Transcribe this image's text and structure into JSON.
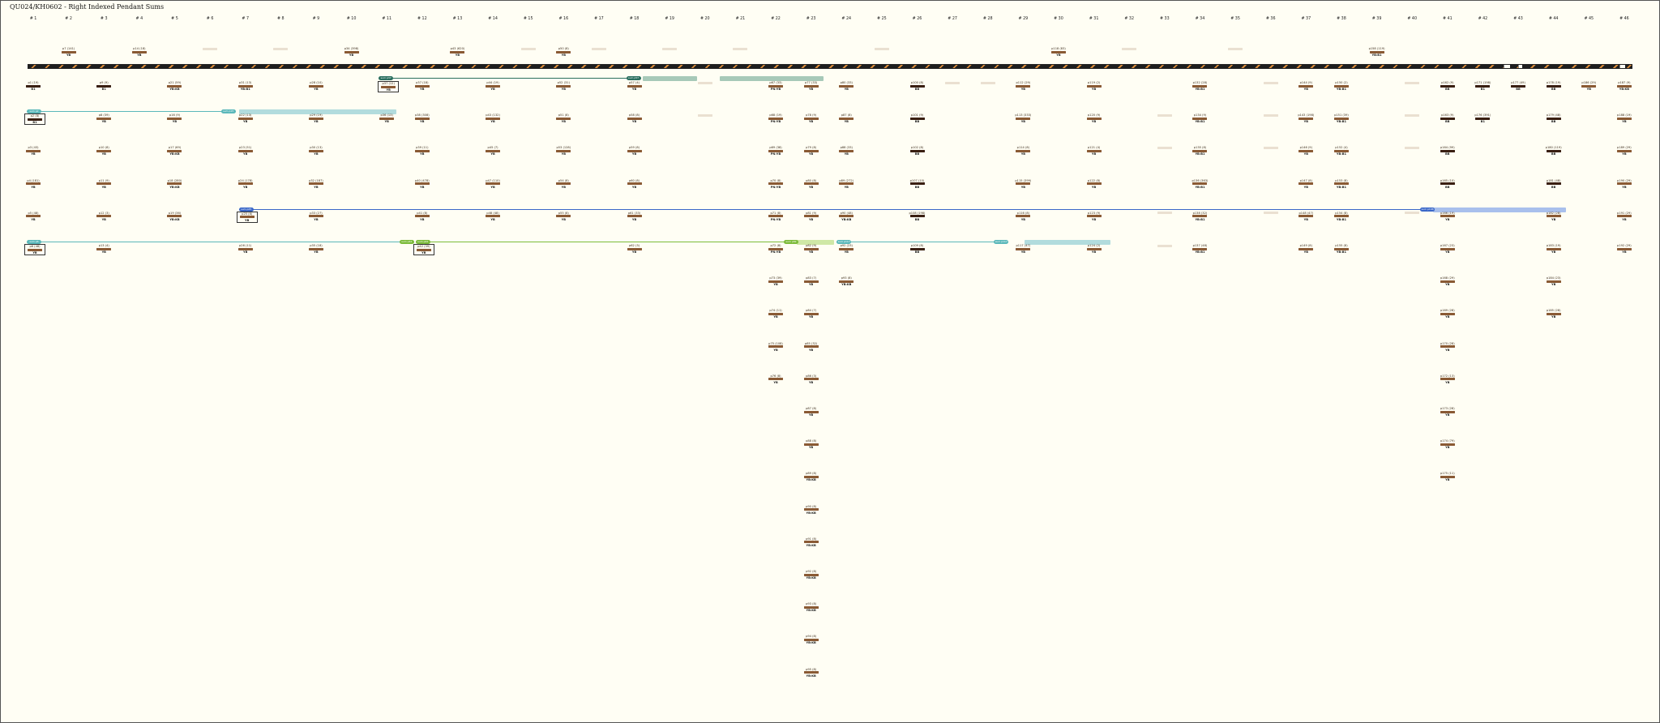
{
  "title": "QU024/KH0602 - Right Indexed Pendant Sums",
  "colors": {
    "background": "#fffef4",
    "cord_brown": "#8a5a34",
    "cord_dark": "#3a1f12",
    "strip_dark": "#1e1e1e",
    "strip_orange": "#d98b3a",
    "teal": "#5bb8ba",
    "dark_teal": "#2b6f5f",
    "blue": "#3a67c8",
    "light_blue": "#a9c0ec",
    "green": "#7cbb3a",
    "light_green": "#cfe8a6"
  },
  "columns": [
    "# 1",
    "# 2",
    "# 3",
    "# 4",
    "# 5",
    "# 6",
    "# 7",
    "# 8",
    "# 9",
    "# 10",
    "# 11",
    "# 12",
    "# 13",
    "# 14",
    "# 15",
    "# 16",
    "# 17",
    "# 18",
    "# 19",
    "# 20",
    "# 21",
    "# 22",
    "# 23",
    "# 24",
    "# 25",
    "# 26",
    "# 27",
    "# 28",
    "# 29",
    "# 30",
    "# 31",
    "# 32",
    "# 33",
    "# 34",
    "# 35",
    "# 36",
    "# 37",
    "# 38",
    "# 39",
    "# 40",
    "# 41",
    "# 42",
    "# 43",
    "# 44",
    "# 45",
    "# 46"
  ],
  "top_row": [
    {
      "c": 2,
      "label": "p7 (141)",
      "sub": "YB"
    },
    {
      "c": 4,
      "label": "p14 (18)",
      "sub": "YB"
    },
    {
      "c": 6,
      "label": "",
      "sub": "",
      "faded": true
    },
    {
      "c": 8,
      "label": "",
      "sub": "",
      "faded": true
    },
    {
      "c": 10,
      "label": "p34 (398)",
      "sub": "YB"
    },
    {
      "c": 13,
      "label": "p43 (620)",
      "sub": "YB"
    },
    {
      "c": 15,
      "label": "",
      "sub": "",
      "faded": true
    },
    {
      "c": 16,
      "label": "p50 (8)",
      "sub": "YB"
    },
    {
      "c": 17,
      "label": "",
      "sub": "",
      "faded": true
    },
    {
      "c": 19,
      "label": "",
      "sub": "",
      "faded": true
    },
    {
      "c": 21,
      "label": "",
      "sub": "",
      "faded": true
    },
    {
      "c": 25,
      "label": "",
      "sub": "",
      "faded": true
    },
    {
      "c": 30,
      "label": "p118 (83)",
      "sub": "YB"
    },
    {
      "c": 32,
      "label": "",
      "sub": "",
      "faded": true
    },
    {
      "c": 35,
      "label": "",
      "sub": "",
      "faded": true
    },
    {
      "c": 39,
      "label": "p158 (119)",
      "sub": "YB:B1"
    }
  ],
  "rows": [
    [
      {
        "c": 1,
        "label": "p1 (19)",
        "sub": "B1",
        "dark": true
      },
      {
        "c": 3,
        "label": "p9 (9)",
        "sub": "B1",
        "dark": true
      },
      {
        "c": 5,
        "label": "p21 (59)",
        "sub": "YB:KB"
      },
      {
        "c": 7,
        "label": "p31 (13)",
        "sub": "YB:B1"
      },
      {
        "c": 9,
        "label": "p28 (10)",
        "sub": "YB"
      },
      {
        "c": 11,
        "label": "p37 (12)",
        "sub": "YB",
        "boxed": true
      },
      {
        "c": 12,
        "label": "p37 (18)",
        "sub": "YB"
      },
      {
        "c": 14,
        "label": "p44 (19)",
        "sub": "YB"
      },
      {
        "c": 16,
        "label": "p52 (31)",
        "sub": "YB"
      },
      {
        "c": 18,
        "label": "p57 (4)",
        "sub": "YB"
      },
      {
        "c": 20,
        "label": "",
        "sub": "",
        "faded": true
      },
      {
        "c": 22,
        "label": "p67 (33)",
        "sub": "PN:YB"
      },
      {
        "c": 23,
        "label": "p77 (33)",
        "sub": "YB"
      },
      {
        "c": 24,
        "label": "p80 (33)",
        "sub": "YB"
      },
      {
        "c": 26,
        "label": "p100 (8)",
        "sub": "BB",
        "dark": true
      },
      {
        "c": 27,
        "label": "",
        "sub": "",
        "faded": true
      },
      {
        "c": 28,
        "label": "",
        "sub": "",
        "faded": true
      },
      {
        "c": 29,
        "label": "p112 (29)",
        "sub": "YB"
      },
      {
        "c": 31,
        "label": "p119 (2)",
        "sub": "YB"
      },
      {
        "c": 34,
        "label": "p132 (28)",
        "sub": "YB:B1"
      },
      {
        "c": 36,
        "label": "",
        "sub": "",
        "faded": true
      },
      {
        "c": 37,
        "label": "p144 (9)",
        "sub": "YB"
      },
      {
        "c": 38,
        "label": "p150 (2)",
        "sub": "YB:B1"
      },
      {
        "c": 40,
        "label": "",
        "sub": "",
        "faded": true
      },
      {
        "c": 41,
        "label": "p162 (9)",
        "sub": "BB",
        "dark": true
      },
      {
        "c": 42,
        "label": "p171 (198)",
        "sub": "B1",
        "dark": true
      },
      {
        "c": 43,
        "label": "p177 (49)",
        "sub": "BB",
        "dark": true
      },
      {
        "c": 44,
        "label": "p178 (19)",
        "sub": "BB",
        "dark": true
      },
      {
        "c": 45,
        "label": "p186 (29)",
        "sub": "YB"
      },
      {
        "c": 46,
        "label": "p187 (9)",
        "sub": "YB:KB"
      }
    ],
    [
      {
        "c": 1,
        "label": "p2 (8)",
        "sub": "B1",
        "dark": true,
        "boxed": true
      },
      {
        "c": 3,
        "label": "p8 (39)",
        "sub": "YB"
      },
      {
        "c": 5,
        "label": "p16 (9)",
        "sub": "YB"
      },
      {
        "c": 7,
        "label": "p22 (13)",
        "sub": "YB"
      },
      {
        "c": 9,
        "label": "p29 (19)",
        "sub": "YB"
      },
      {
        "c": 11,
        "label": "p36 (13)",
        "sub": "YB"
      },
      {
        "c": 12,
        "label": "p38 (308)",
        "sub": "YB"
      },
      {
        "c": 14,
        "label": "p43 (132)",
        "sub": "YB"
      },
      {
        "c": 16,
        "label": "p51 (8)",
        "sub": "YB"
      },
      {
        "c": 18,
        "label": "p58 (8)",
        "sub": "YB"
      },
      {
        "c": 20,
        "label": "",
        "sub": "",
        "faded": true
      },
      {
        "c": 22,
        "label": "p68 (19)",
        "sub": "PN:YB"
      },
      {
        "c": 23,
        "label": "p78 (9)",
        "sub": "YB"
      },
      {
        "c": 24,
        "label": "p87 (8)",
        "sub": "YB"
      },
      {
        "c": 26,
        "label": "p101 (9)",
        "sub": "BB",
        "dark": true
      },
      {
        "c": 29,
        "label": "p113 (333)",
        "sub": "YB"
      },
      {
        "c": 31,
        "label": "p120 (9)",
        "sub": "YB"
      },
      {
        "c": 33,
        "label": "",
        "sub": "",
        "faded": true
      },
      {
        "c": 34,
        "label": "p134 (9)",
        "sub": "YB:B1"
      },
      {
        "c": 36,
        "label": "",
        "sub": "",
        "faded": true
      },
      {
        "c": 37,
        "label": "p143 (198)",
        "sub": "YB"
      },
      {
        "c": 38,
        "label": "p151 (39)",
        "sub": "YB:B1"
      },
      {
        "c": 40,
        "label": "",
        "sub": "",
        "faded": true
      },
      {
        "c": 41,
        "label": "p163 (9)",
        "sub": "BB",
        "dark": true
      },
      {
        "c": 42,
        "label": "p176 (391)",
        "sub": "B1",
        "dark": true
      },
      {
        "c": 44,
        "label": "p179 (48)",
        "sub": "BB",
        "dark": true
      },
      {
        "c": 46,
        "label": "p188 (19)",
        "sub": "YB"
      }
    ],
    [
      {
        "c": 1,
        "label": "p3 (43)",
        "sub": "YB"
      },
      {
        "c": 3,
        "label": "p10 (8)",
        "sub": "YB"
      },
      {
        "c": 5,
        "label": "p17 (69)",
        "sub": "YB:KB"
      },
      {
        "c": 7,
        "label": "p23 (51)",
        "sub": "YB"
      },
      {
        "c": 9,
        "label": "p30 (13)",
        "sub": "YB"
      },
      {
        "c": 12,
        "label": "p39 (11)",
        "sub": "YB"
      },
      {
        "c": 14,
        "label": "p45 (7)",
        "sub": "YB"
      },
      {
        "c": 16,
        "label": "p53 (128)",
        "sub": "YB"
      },
      {
        "c": 18,
        "label": "p59 (8)",
        "sub": "YB"
      },
      {
        "c": 22,
        "label": "p69 (38)",
        "sub": "PN:YB"
      },
      {
        "c": 23,
        "label": "p79 (8)",
        "sub": "YB"
      },
      {
        "c": 24,
        "label": "p88 (33)",
        "sub": "YB"
      },
      {
        "c": 26,
        "label": "p102 (8)",
        "sub": "BB",
        "dark": true
      },
      {
        "c": 29,
        "label": "p114 (8)",
        "sub": "YB"
      },
      {
        "c": 31,
        "label": "p121 (4)",
        "sub": "YB"
      },
      {
        "c": 33,
        "label": "",
        "sub": "",
        "faded": true
      },
      {
        "c": 34,
        "label": "p135 (8)",
        "sub": "YB:B1"
      },
      {
        "c": 36,
        "label": "",
        "sub": "",
        "faded": true
      },
      {
        "c": 37,
        "label": "p146 (9)",
        "sub": "YB"
      },
      {
        "c": 38,
        "label": "p152 (4)",
        "sub": "YB:B1"
      },
      {
        "c": 40,
        "label": "",
        "sub": "",
        "faded": true
      },
      {
        "c": 41,
        "label": "p164 (99)",
        "sub": "BB",
        "dark": true
      },
      {
        "c": 44,
        "label": "p180 (119)",
        "sub": "BB",
        "dark": true
      },
      {
        "c": 46,
        "label": "p189 (29)",
        "sub": "YB"
      }
    ],
    [
      {
        "c": 1,
        "label": "p4 (181)",
        "sub": "YB"
      },
      {
        "c": 3,
        "label": "p11 (9)",
        "sub": "YB"
      },
      {
        "c": 5,
        "label": "p18 (280)",
        "sub": "YB:KB"
      },
      {
        "c": 7,
        "label": "p24 (178)",
        "sub": "YB"
      },
      {
        "c": 9,
        "label": "p32 (187)",
        "sub": "YB"
      },
      {
        "c": 12,
        "label": "p40 (478)",
        "sub": "YB"
      },
      {
        "c": 14,
        "label": "p47 (110)",
        "sub": "YB"
      },
      {
        "c": 16,
        "label": "p54 (8)",
        "sub": "YB"
      },
      {
        "c": 18,
        "label": "p60 (8)",
        "sub": "YB"
      },
      {
        "c": 22,
        "label": "p70 (8)",
        "sub": "PN:YB"
      },
      {
        "c": 23,
        "label": "p80 (8)",
        "sub": "YB"
      },
      {
        "c": 24,
        "label": "p89 (272)",
        "sub": "YB"
      },
      {
        "c": 26,
        "label": "p107 (10)",
        "sub": "BB",
        "dark": true
      },
      {
        "c": 29,
        "label": "p115 (399)",
        "sub": "YB"
      },
      {
        "c": 31,
        "label": "p122 (8)",
        "sub": "YB"
      },
      {
        "c": 34,
        "label": "p136 (363)",
        "sub": "YB:B1"
      },
      {
        "c": 37,
        "label": "p147 (8)",
        "sub": "YB"
      },
      {
        "c": 38,
        "label": "p153 (8)",
        "sub": "YB:B1"
      },
      {
        "c": 41,
        "label": "p165 (10)",
        "sub": "BB",
        "dark": true
      },
      {
        "c": 44,
        "label": "p181 (48)",
        "sub": "BB",
        "dark": true
      },
      {
        "c": 46,
        "label": "p190 (29)",
        "sub": "YB"
      }
    ],
    [
      {
        "c": 1,
        "label": "p5 (48)",
        "sub": "YB"
      },
      {
        "c": 3,
        "label": "p12 (3)",
        "sub": "YB"
      },
      {
        "c": 5,
        "label": "p19 (36)",
        "sub": "YB:KB"
      },
      {
        "c": 7,
        "label": "p25 (8)",
        "sub": "YB",
        "boxed": true
      },
      {
        "c": 9,
        "label": "p33 (27)",
        "sub": "YB"
      },
      {
        "c": 12,
        "label": "p41 (8)",
        "sub": "YB"
      },
      {
        "c": 14,
        "label": "p48 (48)",
        "sub": "YB"
      },
      {
        "c": 16,
        "label": "p55 (8)",
        "sub": "YB"
      },
      {
        "c": 18,
        "label": "p61 (33)",
        "sub": "YB"
      },
      {
        "c": 22,
        "label": "p71 (8)",
        "sub": "PN:YB"
      },
      {
        "c": 23,
        "label": "p81 (9)",
        "sub": "YB"
      },
      {
        "c": 24,
        "label": "p90 (48)",
        "sub": "YB:KB"
      },
      {
        "c": 26,
        "label": "p108 (198)",
        "sub": "BB",
        "dark": true
      },
      {
        "c": 29,
        "label": "p116 (8)",
        "sub": "YB"
      },
      {
        "c": 31,
        "label": "p123 (9)",
        "sub": "YB"
      },
      {
        "c": 33,
        "label": "",
        "sub": "",
        "faded": true
      },
      {
        "c": 34,
        "label": "p138 (32)",
        "sub": "YB:B1"
      },
      {
        "c": 36,
        "label": "",
        "sub": "",
        "faded": true
      },
      {
        "c": 37,
        "label": "p148 (47)",
        "sub": "YB"
      },
      {
        "c": 38,
        "label": "p154 (8)",
        "sub": "YB:B1"
      },
      {
        "c": 40,
        "label": "",
        "sub": "",
        "faded": true
      },
      {
        "c": 41,
        "label": "p166 (19)",
        "sub": "YB"
      },
      {
        "c": 44,
        "label": "p182 (28)",
        "sub": "YB"
      },
      {
        "c": 46,
        "label": "p191 (29)",
        "sub": "YB"
      }
    ],
    [
      {
        "c": 1,
        "label": "p6 (48)",
        "sub": "YB",
        "boxed": true
      },
      {
        "c": 3,
        "label": "p13 (4)",
        "sub": "YB"
      },
      {
        "c": 7,
        "label": "p26 (11)",
        "sub": "YB"
      },
      {
        "c": 9,
        "label": "p35 (18)",
        "sub": "YB"
      },
      {
        "c": 12,
        "label": "p42 (39)",
        "sub": "YB",
        "boxed": true
      },
      {
        "c": 18,
        "label": "p62 (3)",
        "sub": "YB"
      },
      {
        "c": 22,
        "label": "p72 (8)",
        "sub": "PN:YB"
      },
      {
        "c": 23,
        "label": "p82 (9)",
        "sub": "YB"
      },
      {
        "c": 24,
        "label": "p92 (23)",
        "sub": "YB"
      },
      {
        "c": 26,
        "label": "p109 (8)",
        "sub": "BB",
        "dark": true
      },
      {
        "c": 29,
        "label": "p117 (47)",
        "sub": "YB"
      },
      {
        "c": 31,
        "label": "p124 (2)",
        "sub": "YB"
      },
      {
        "c": 33,
        "label": "",
        "sub": "",
        "faded": true
      },
      {
        "c": 34,
        "label": "p137 (48)",
        "sub": "YB:B1"
      },
      {
        "c": 37,
        "label": "p149 (8)",
        "sub": "YB"
      },
      {
        "c": 38,
        "label": "p155 (8)",
        "sub": "YB:B1"
      },
      {
        "c": 41,
        "label": "p167 (23)",
        "sub": "YB"
      },
      {
        "c": 44,
        "label": "p183 (19)",
        "sub": "YB"
      },
      {
        "c": 46,
        "label": "p192 (29)",
        "sub": "YB"
      }
    ],
    [
      {
        "c": 22,
        "label": "p73 (39)",
        "sub": "YB"
      },
      {
        "c": 23,
        "label": "p83 (7)",
        "sub": "YB"
      },
      {
        "c": 24,
        "label": "p93 (8)",
        "sub": "YB:KB"
      },
      {
        "c": 41,
        "label": "p168 (29)",
        "sub": "YB"
      },
      {
        "c": 44,
        "label": "p184 (23)",
        "sub": "YB"
      }
    ],
    [
      {
        "c": 22,
        "label": "p74 (11)",
        "sub": "YB"
      },
      {
        "c": 23,
        "label": "p84 (7)",
        "sub": "YB"
      },
      {
        "c": 41,
        "label": "p169 (28)",
        "sub": "YB"
      },
      {
        "c": 44,
        "label": "p185 (28)",
        "sub": "YB"
      }
    ],
    [
      {
        "c": 22,
        "label": "p75 (108)",
        "sub": "YB"
      },
      {
        "c": 23,
        "label": "p85 (32)",
        "sub": "YB"
      },
      {
        "c": 41,
        "label": "p170 (28)",
        "sub": "YB"
      }
    ],
    [
      {
        "c": 22,
        "label": "p76 (8)",
        "sub": "YB"
      },
      {
        "c": 23,
        "label": "p86 (3)",
        "sub": "YB"
      },
      {
        "c": 41,
        "label": "p172 (13)",
        "sub": "YB"
      }
    ],
    [
      {
        "c": 23,
        "label": "p87 (8)",
        "sub": "YB"
      },
      {
        "c": 41,
        "label": "p173 (28)",
        "sub": "YB"
      }
    ],
    [
      {
        "c": 23,
        "label": "p88 (8)",
        "sub": "YB"
      },
      {
        "c": 41,
        "label": "p174 (79)",
        "sub": "YB"
      }
    ],
    [
      {
        "c": 23,
        "label": "p89 (8)",
        "sub": "YB:KB"
      },
      {
        "c": 41,
        "label": "p175 (11)",
        "sub": "YB"
      }
    ],
    [
      {
        "c": 23,
        "label": "p90 (8)",
        "sub": "YB:KB"
      }
    ],
    [
      {
        "c": 23,
        "label": "p91 (8)",
        "sub": "YB:KB"
      }
    ],
    [
      {
        "c": 23,
        "label": "p92 (8)",
        "sub": "YB:KB"
      }
    ],
    [
      {
        "c": 23,
        "label": "p93 (8)",
        "sub": "YB:KB"
      }
    ],
    [
      {
        "c": 23,
        "label": "p94 (8)",
        "sub": "YB:KB"
      }
    ],
    [
      {
        "c": 23,
        "label": "p95 (8)",
        "sub": "YB:KB"
      }
    ]
  ],
  "sum_links": [
    {
      "tag": "sum p37",
      "color": "dark_teal",
      "bar": "#a7c9b8"
    },
    {
      "tag": "sum p57",
      "color": "dark_teal",
      "bar": "#a7c9b8"
    },
    {
      "tag": "sum p2",
      "color": "teal",
      "bar": "#b2dcdd"
    },
    {
      "tag": "sum p15",
      "color": "teal",
      "bar": "#b2dcdd"
    },
    {
      "tag": "sum p25",
      "color": "blue",
      "bar": "#a9c0ec"
    },
    {
      "tag": "sum p166",
      "color": "blue",
      "bar": "#a9c0ec"
    },
    {
      "tag": "sum p6",
      "color": "teal",
      "bar": "#b2dcdd"
    },
    {
      "tag": "sum p42",
      "color": "green",
      "bar": "#cfe8a6"
    },
    {
      "tag": "sum p82",
      "color": "green",
      "bar": "#cfe8a6"
    },
    {
      "tag": "sum p117",
      "color": "teal",
      "bar": "#b2dcdd"
    }
  ]
}
